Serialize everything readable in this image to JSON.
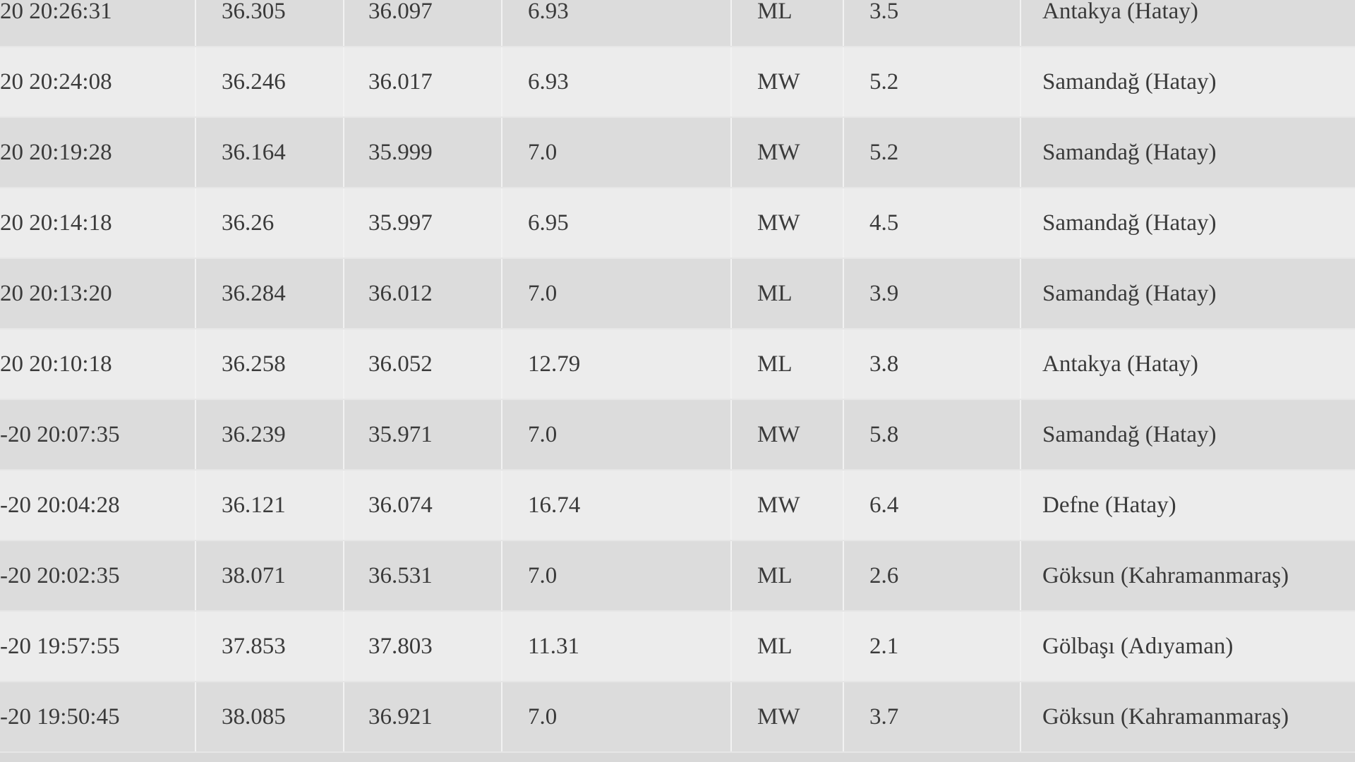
{
  "table": {
    "rows": [
      [
        "20 20:26:31",
        "36.305",
        "36.097",
        "6.93",
        "ML",
        "3.5",
        "Antakya (Hatay)"
      ],
      [
        "20 20:24:08",
        "36.246",
        "36.017",
        "6.93",
        "MW",
        "5.2",
        "Samandağ (Hatay)"
      ],
      [
        "20 20:19:28",
        "36.164",
        "35.999",
        "7.0",
        "MW",
        "5.2",
        "Samandağ (Hatay)"
      ],
      [
        "20 20:14:18",
        "36.26",
        "35.997",
        "6.95",
        "MW",
        "4.5",
        "Samandağ (Hatay)"
      ],
      [
        "20 20:13:20",
        "36.284",
        "36.012",
        "7.0",
        "ML",
        "3.9",
        "Samandağ (Hatay)"
      ],
      [
        "20 20:10:18",
        "36.258",
        "36.052",
        "12.79",
        "ML",
        "3.8",
        "Antakya (Hatay)"
      ],
      [
        "-20 20:07:35",
        "36.239",
        "35.971",
        "7.0",
        "MW",
        "5.8",
        "Samandağ (Hatay)"
      ],
      [
        "-20 20:04:28",
        "36.121",
        "36.074",
        "16.74",
        "MW",
        "6.4",
        "Defne (Hatay)"
      ],
      [
        "-20 20:02:35",
        "38.071",
        "36.531",
        "7.0",
        "ML",
        "2.6",
        "Göksun (Kahramanmaraş)"
      ],
      [
        "-20 19:57:55",
        "37.853",
        "37.803",
        "11.31",
        "ML",
        "2.1",
        "Gölbaşı (Adıyaman)"
      ],
      [
        "-20 19:50:45",
        "38.085",
        "36.921",
        "7.0",
        "MW",
        "3.7",
        "Göksun (Kahramanmaraş)"
      ]
    ]
  }
}
